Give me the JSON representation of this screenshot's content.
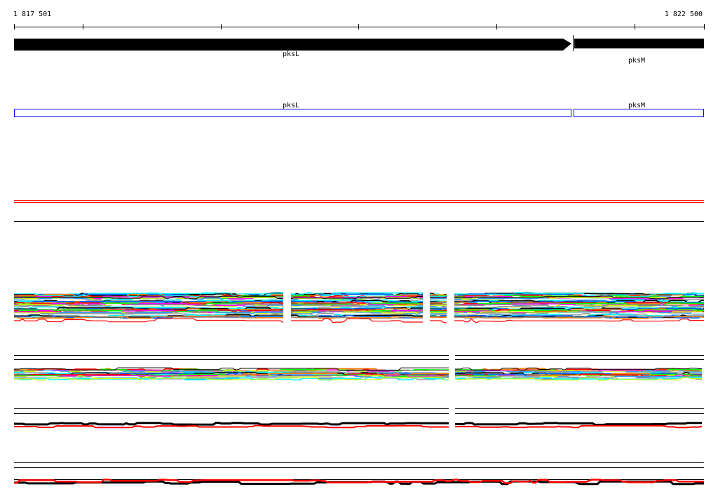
{
  "ruler": {
    "start_label": "1 817 501",
    "end_label": "1 822 500"
  },
  "genes": [
    {
      "name": "pksL",
      "strand": "+"
    },
    {
      "name": "pksM",
      "strand": "+"
    }
  ],
  "annotations": [
    {
      "name": "pksL"
    },
    {
      "name": "pksM"
    }
  ],
  "colors": {
    "gene": "#000000",
    "annotation_box": "#0000ff",
    "separator_red": "#ff0000",
    "palette": [
      "#00ffff",
      "#000000",
      "#0066ff",
      "#ff8000",
      "#ff0000",
      "#00ff00",
      "#ff00ff",
      "#888888",
      "#ccff00",
      "#3399ff",
      "#ffffff",
      "#a0a0a0"
    ]
  }
}
